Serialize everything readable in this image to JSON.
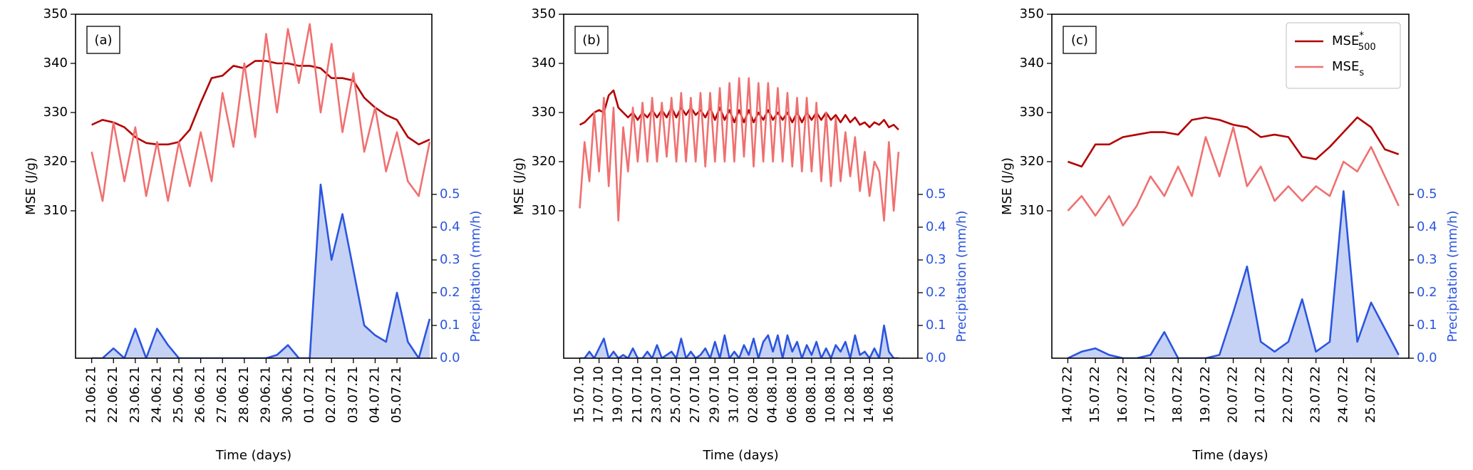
{
  "chart_data": [
    {
      "type": "line",
      "panel_label": "(a)",
      "xlabel": "Time (days)",
      "ylabel": "MSE (J/g)",
      "y2label": "Precipitation (mm/h)",
      "xlim": [
        -0.74,
        15.6
      ],
      "ylim": [
        280,
        350
      ],
      "y2lim": [
        0,
        1.05
      ],
      "xticks": [
        {
          "value": 0,
          "label": "21.06.21"
        },
        {
          "value": 1,
          "label": "22.06.21"
        },
        {
          "value": 2,
          "label": "23.06.21"
        },
        {
          "value": 3,
          "label": "24.06.21"
        },
        {
          "value": 4,
          "label": "25.06.21"
        },
        {
          "value": 5,
          "label": "26.06.21"
        },
        {
          "value": 6,
          "label": "27.06.21"
        },
        {
          "value": 7,
          "label": "28.06.21"
        },
        {
          "value": 8,
          "label": "29.06.21"
        },
        {
          "value": 9,
          "label": "30.06.21"
        },
        {
          "value": 10,
          "label": "01.07.21"
        },
        {
          "value": 11,
          "label": "02.07.21"
        },
        {
          "value": 12,
          "label": "03.07.21"
        },
        {
          "value": 13,
          "label": "04.07.21"
        },
        {
          "value": 14,
          "label": "05.07.21"
        }
      ],
      "yticks": [
        310,
        320,
        330,
        340,
        350
      ],
      "y2ticks": [
        {
          "value": 0,
          "label": "0.0"
        },
        0.1,
        0.2,
        0.3,
        0.4,
        0.5
      ],
      "x": [
        0,
        0.5,
        1,
        1.5,
        2,
        2.5,
        3,
        3.5,
        4,
        4.5,
        5,
        5.5,
        6,
        6.5,
        7,
        7.5,
        8,
        8.5,
        9,
        9.5,
        10,
        10.5,
        11,
        11.5,
        12,
        12.5,
        13,
        13.5,
        14,
        14.5,
        15,
        15.5
      ],
      "series": [
        {
          "color": "#b30000",
          "values": [
            327.5,
            328.5,
            328,
            327,
            325,
            323.8,
            323.5,
            323.5,
            324,
            326.5,
            332,
            337,
            337.5,
            339.5,
            339,
            340.5,
            340.5,
            340,
            340,
            339.5,
            339.5,
            339,
            337,
            337,
            336.5,
            333,
            331,
            329.5,
            328.5,
            325,
            323.5,
            324.5
          ]
        },
        {
          "color": "#f07070",
          "values": [
            322,
            312,
            328,
            316,
            327,
            313,
            324,
            312,
            324,
            315,
            326,
            316,
            334,
            323,
            340,
            325,
            346,
            330,
            347,
            336,
            348,
            330,
            344,
            326,
            338,
            322,
            331,
            318,
            326,
            316,
            313,
            324
          ]
        },
        {
          "color": "#2b55e0",
          "fill": "#c6d2f5",
          "axis": "y2",
          "values": [
            0,
            0,
            0.03,
            0,
            0.09,
            0,
            0.09,
            0.04,
            0,
            0,
            0,
            0,
            0,
            0,
            0,
            0,
            0,
            0.01,
            0.04,
            0,
            0,
            0.53,
            0.3,
            0.44,
            0.27,
            0.1,
            0.07,
            0.05,
            0.2,
            0.05,
            0,
            0.12
          ]
        }
      ]
    },
    {
      "type": "line",
      "panel_label": "(b)",
      "xlabel": "Time (days)",
      "ylabel": "MSE (J/g)",
      "y2label": "Precipitation (mm/h)",
      "xlim": [
        -1.66,
        35
      ],
      "ylim": [
        280,
        350
      ],
      "y2lim": [
        0,
        1.05
      ],
      "xticks": [
        {
          "value": 0,
          "label": "15.07.10"
        },
        {
          "value": 2,
          "label": "17.07.10"
        },
        {
          "value": 4,
          "label": "19.07.10"
        },
        {
          "value": 6,
          "label": "21.07.10"
        },
        {
          "value": 8,
          "label": "23.07.10"
        },
        {
          "value": 10,
          "label": "25.07.10"
        },
        {
          "value": 12,
          "label": "27.07.10"
        },
        {
          "value": 14,
          "label": "29.07.10"
        },
        {
          "value": 16,
          "label": "31.07.10"
        },
        {
          "value": 18,
          "label": "02.08.10"
        },
        {
          "value": 20,
          "label": "04.08.10"
        },
        {
          "value": 22,
          "label": "06.08.10"
        },
        {
          "value": 24,
          "label": "08.08.10"
        },
        {
          "value": 26,
          "label": "10.08.10"
        },
        {
          "value": 28,
          "label": "12.08.10"
        },
        {
          "value": 30,
          "label": "14.08.10"
        },
        {
          "value": 32,
          "label": "16.08.10"
        }
      ],
      "yticks": [
        310,
        320,
        330,
        340,
        350
      ],
      "y2ticks": [
        {
          "value": 0,
          "label": "0.0"
        },
        0.1,
        0.2,
        0.3,
        0.4,
        0.5
      ],
      "x": [
        0,
        0.5,
        1,
        1.5,
        2,
        2.5,
        3,
        3.5,
        4,
        4.5,
        5,
        5.5,
        6,
        6.5,
        7,
        7.5,
        8,
        8.5,
        9,
        9.5,
        10,
        10.5,
        11,
        11.5,
        12,
        12.5,
        13,
        13.5,
        14,
        14.5,
        15,
        15.5,
        16,
        16.5,
        17,
        17.5,
        18,
        18.5,
        19,
        19.5,
        20,
        20.5,
        21,
        21.5,
        22,
        22.5,
        23,
        23.5,
        24,
        24.5,
        25,
        25.5,
        26,
        26.5,
        27,
        27.5,
        28,
        28.5,
        29,
        29.5,
        30,
        30.5,
        31,
        31.5,
        32,
        32.5,
        33
      ],
      "series": [
        {
          "color": "#b30000",
          "values": [
            327.5,
            328,
            329,
            330,
            330.5,
            330,
            333.5,
            334.5,
            331,
            330,
            329,
            330,
            328.5,
            330,
            329,
            330.5,
            329,
            330.5,
            329,
            331,
            329,
            331,
            329.5,
            331,
            329.5,
            330.5,
            329,
            331,
            328.5,
            331,
            328.5,
            330.5,
            328,
            330.5,
            328,
            330.5,
            328,
            330,
            328.5,
            330.5,
            328.5,
            330,
            328.5,
            330,
            328,
            330,
            328,
            330,
            328.5,
            330,
            328.5,
            330,
            328.5,
            329.5,
            328,
            329.5,
            328,
            329,
            327.5,
            328,
            327,
            328,
            327.5,
            328.5,
            327,
            327.5,
            326.5
          ]
        },
        {
          "color": "#f07070",
          "values": [
            310.5,
            324,
            316,
            330,
            318,
            333,
            315,
            331,
            308,
            327,
            318,
            331,
            320,
            332,
            320,
            333,
            320,
            332,
            321,
            333,
            320,
            334,
            320,
            333,
            320,
            334,
            319,
            334,
            320,
            335,
            320,
            336,
            320,
            337,
            321,
            337,
            319,
            336,
            320,
            336,
            320,
            335,
            320,
            334,
            319,
            333,
            318,
            333,
            318,
            332,
            316,
            330,
            315,
            329,
            316,
            326,
            317,
            325,
            314,
            322,
            313,
            320,
            318,
            308,
            324,
            310,
            322
          ]
        },
        {
          "color": "#2b55e0",
          "fill": "#c6d2f5",
          "axis": "y2",
          "values": [
            0,
            0,
            0.02,
            0,
            0.03,
            0.06,
            0,
            0.02,
            0,
            0.01,
            0,
            0.03,
            0,
            0,
            0.02,
            0,
            0.04,
            0,
            0.01,
            0.02,
            0,
            0.06,
            0,
            0.02,
            0,
            0.01,
            0.03,
            0,
            0.05,
            0,
            0.07,
            0,
            0.02,
            0,
            0.04,
            0.01,
            0.06,
            0,
            0.05,
            0.07,
            0.02,
            0.07,
            0,
            0.07,
            0.02,
            0.05,
            0,
            0.04,
            0.01,
            0.05,
            0,
            0.03,
            0,
            0.04,
            0.02,
            0.05,
            0,
            0.07,
            0.01,
            0.02,
            0,
            0.03,
            0,
            0.1,
            0.02,
            0,
            0
          ]
        }
      ]
    },
    {
      "type": "line",
      "panel_label": "(c)",
      "xlabel": "Time (days)",
      "ylabel": "MSE (J/g)",
      "y2label": "Precipitation (mm/h)",
      "legend": "upper right",
      "xlim": [
        -0.58,
        12.37
      ],
      "ylim": [
        280,
        350
      ],
      "y2lim": [
        0,
        1.05
      ],
      "xticks": [
        {
          "value": 0,
          "label": "14.07.22"
        },
        {
          "value": 1,
          "label": "15.07.22"
        },
        {
          "value": 2,
          "label": "16.07.22"
        },
        {
          "value": 3,
          "label": "17.07.22"
        },
        {
          "value": 4,
          "label": "18.07.22"
        },
        {
          "value": 5,
          "label": "19.07.22"
        },
        {
          "value": 6,
          "label": "20.07.22"
        },
        {
          "value": 7,
          "label": "21.07.22"
        },
        {
          "value": 8,
          "label": "22.07.22"
        },
        {
          "value": 9,
          "label": "23.07.22"
        },
        {
          "value": 10,
          "label": "24.07.22"
        },
        {
          "value": 11,
          "label": "25.07.22"
        }
      ],
      "yticks": [
        310,
        320,
        330,
        340,
        350
      ],
      "y2ticks": [
        {
          "value": 0,
          "label": "0.0"
        },
        0.1,
        0.2,
        0.3,
        0.4,
        0.5
      ],
      "x": [
        0,
        0.5,
        1,
        1.5,
        2,
        2.5,
        3,
        3.5,
        4,
        4.5,
        5,
        5.5,
        6,
        6.5,
        7,
        7.5,
        8,
        8.5,
        9,
        9.5,
        10,
        10.5,
        11,
        11.5,
        12
      ],
      "series": [
        {
          "name": "MSE",
          "name_sup": "*",
          "name_sub": "500",
          "color": "#b30000",
          "values": [
            320,
            319,
            323.5,
            323.5,
            325,
            325.5,
            326,
            326,
            325.5,
            328.5,
            329,
            328.5,
            327.5,
            327,
            325,
            325.5,
            325,
            321,
            320.5,
            323,
            326,
            329,
            327,
            322.5,
            321.5
          ]
        },
        {
          "name": "MSE",
          "name_sub": "s",
          "color": "#f07070",
          "values": [
            310,
            313,
            309,
            313,
            307,
            311,
            317,
            313,
            319,
            313,
            325,
            317,
            327,
            315,
            319,
            312,
            315,
            312,
            315,
            313,
            320,
            318,
            323,
            317,
            311
          ]
        },
        {
          "color": "#2b55e0",
          "fill": "#c6d2f5",
          "axis": "y2",
          "values": [
            0,
            0.02,
            0.03,
            0.01,
            0,
            0,
            0.01,
            0.08,
            0,
            0,
            0,
            0.01,
            0.14,
            0.28,
            0.05,
            0.02,
            0.05,
            0.18,
            0.02,
            0.05,
            0.51,
            0.05,
            0.17,
            0.09,
            0.01
          ]
        }
      ]
    }
  ]
}
